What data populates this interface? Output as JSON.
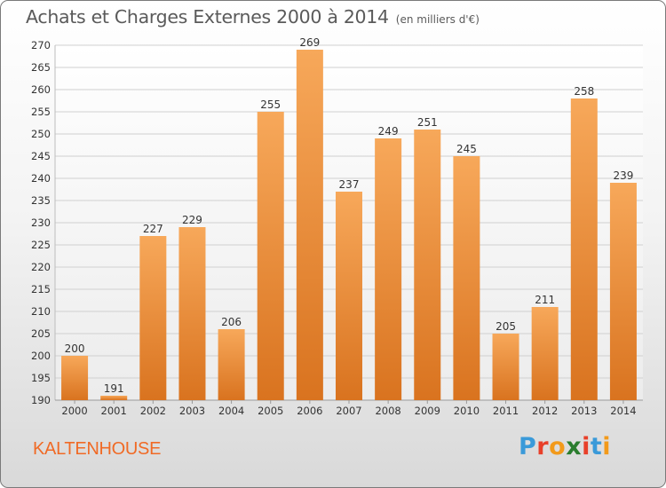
{
  "header": {
    "title": "Achats et Charges Externes 2000 à 2014",
    "subtitle": "(en milliers d'€)"
  },
  "footer": {
    "town": "KALTENHOUSE",
    "brand": "Proxiti",
    "brand_letters": [
      "P",
      "r",
      "o",
      "x",
      "i",
      "t",
      "i"
    ],
    "brand_colors": [
      "#3a9ad9",
      "#e8402a",
      "#f29a1b",
      "#2a7d2e",
      "#e8402a",
      "#3a9ad9",
      "#f29a1b"
    ]
  },
  "colors": {
    "bar_top": "#f7a85a",
    "bar_bottom": "#d9731f",
    "grid": "#d0d0d0",
    "axis_text": "#333333",
    "title": "#5a5a5a",
    "town": "#f06a25"
  },
  "chart_data": {
    "type": "bar",
    "title": "Achats et Charges Externes 2000 à 2014",
    "subtitle": "(en milliers d'€)",
    "categories": [
      "2000",
      "2001",
      "2002",
      "2003",
      "2004",
      "2005",
      "2006",
      "2007",
      "2008",
      "2009",
      "2010",
      "2011",
      "2012",
      "2013",
      "2014"
    ],
    "values": [
      200,
      191,
      227,
      229,
      206,
      255,
      269,
      237,
      249,
      251,
      245,
      205,
      211,
      258,
      239
    ],
    "ylim": [
      190,
      270
    ],
    "ytick_step": 5,
    "yticks": [
      "190",
      "195",
      "200",
      "205",
      "210",
      "215",
      "220",
      "225",
      "230",
      "235",
      "240",
      "245",
      "250",
      "255",
      "260",
      "265",
      "270"
    ],
    "grid": true,
    "xlabel": "",
    "ylabel": ""
  }
}
